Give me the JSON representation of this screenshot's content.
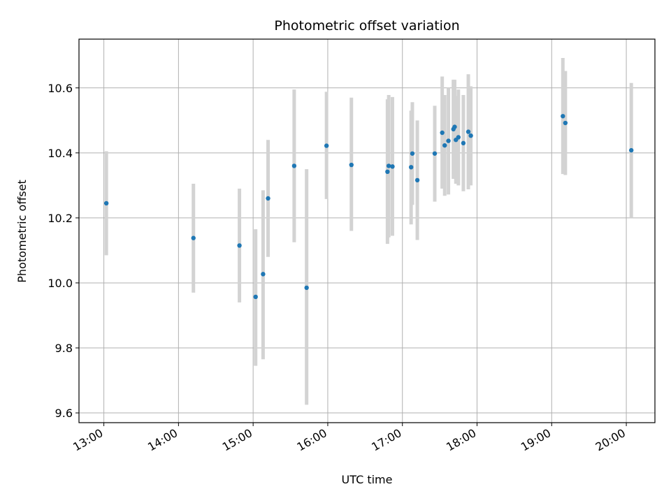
{
  "chart_data": {
    "type": "scatter",
    "title": "Photometric offset variation",
    "xlabel": "UTC time",
    "ylabel": "Photometric offset",
    "x_is_time": true,
    "xlim": [
      "12:40",
      "20:23"
    ],
    "ylim": [
      9.57,
      10.75
    ],
    "x_ticks": [
      "13:00",
      "14:00",
      "15:00",
      "16:00",
      "17:00",
      "18:00",
      "19:00",
      "20:00"
    ],
    "y_ticks": [
      "9.6",
      "9.8",
      "10.0",
      "10.2",
      "10.4",
      "10.6"
    ],
    "y_tick_values": [
      9.6,
      9.8,
      10.0,
      10.2,
      10.4,
      10.6
    ],
    "grid": true,
    "point_color": "#1f77b4",
    "errorbar_color": "#d3d3d3",
    "series": [
      {
        "points": [
          {
            "t": "13:02",
            "y": 10.245,
            "lo": 10.085,
            "hi": 10.405
          },
          {
            "t": "14:12",
            "y": 10.138,
            "lo": 9.97,
            "hi": 10.305
          },
          {
            "t": "14:49",
            "y": 10.115,
            "lo": 9.94,
            "hi": 10.29
          },
          {
            "t": "15:02",
            "y": 9.957,
            "lo": 9.745,
            "hi": 10.165
          },
          {
            "t": "15:08",
            "y": 10.027,
            "lo": 9.765,
            "hi": 10.285
          },
          {
            "t": "15:12",
            "y": 10.26,
            "lo": 10.08,
            "hi": 10.44
          },
          {
            "t": "15:33",
            "y": 10.36,
            "lo": 10.125,
            "hi": 10.595
          },
          {
            "t": "15:43",
            "y": 9.985,
            "lo": 9.625,
            "hi": 10.35
          },
          {
            "t": "15:59",
            "y": 10.422,
            "lo": 10.258,
            "hi": 10.588
          },
          {
            "t": "16:19",
            "y": 10.363,
            "lo": 10.16,
            "hi": 10.57
          },
          {
            "t": "16:48",
            "y": 10.342,
            "lo": 10.12,
            "hi": 10.565
          },
          {
            "t": "16:49",
            "y": 10.36,
            "lo": 10.14,
            "hi": 10.578
          },
          {
            "t": "16:52",
            "y": 10.358,
            "lo": 10.145,
            "hi": 10.572
          },
          {
            "t": "17:07",
            "y": 10.356,
            "lo": 10.18,
            "hi": 10.53
          },
          {
            "t": "17:08",
            "y": 10.398,
            "lo": 10.24,
            "hi": 10.556
          },
          {
            "t": "17:12",
            "y": 10.316,
            "lo": 10.132,
            "hi": 10.5
          },
          {
            "t": "17:26",
            "y": 10.398,
            "lo": 10.25,
            "hi": 10.545
          },
          {
            "t": "17:32",
            "y": 10.462,
            "lo": 10.29,
            "hi": 10.635
          },
          {
            "t": "17:34",
            "y": 10.423,
            "lo": 10.268,
            "hi": 10.578
          },
          {
            "t": "17:37",
            "y": 10.437,
            "lo": 10.272,
            "hi": 10.602
          },
          {
            "t": "17:41",
            "y": 10.473,
            "lo": 10.32,
            "hi": 10.625
          },
          {
            "t": "17:42",
            "y": 10.48,
            "lo": 10.335,
            "hi": 10.625
          },
          {
            "t": "17:43",
            "y": 10.44,
            "lo": 10.305,
            "hi": 10.575
          },
          {
            "t": "17:45",
            "y": 10.448,
            "lo": 10.3,
            "hi": 10.595
          },
          {
            "t": "17:49",
            "y": 10.43,
            "lo": 10.282,
            "hi": 10.578
          },
          {
            "t": "17:53",
            "y": 10.465,
            "lo": 10.288,
            "hi": 10.642
          },
          {
            "t": "17:55",
            "y": 10.453,
            "lo": 10.3,
            "hi": 10.605
          },
          {
            "t": "19:09",
            "y": 10.513,
            "lo": 10.335,
            "hi": 10.692
          },
          {
            "t": "19:11",
            "y": 10.492,
            "lo": 10.332,
            "hi": 10.652
          },
          {
            "t": "20:04",
            "y": 10.408,
            "lo": 10.2,
            "hi": 10.615
          }
        ]
      }
    ]
  }
}
